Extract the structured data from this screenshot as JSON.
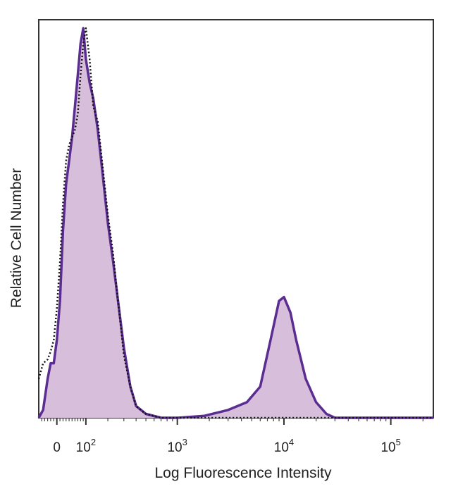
{
  "chart_data": {
    "type": "area",
    "xlabel": "Log Fluorescence Intensity",
    "ylabel": "Relative Cell Number",
    "x_scale": "biexponential",
    "x_ticks": [
      {
        "value": 0,
        "base": "0",
        "exp": ""
      },
      {
        "value": 100,
        "base": "10",
        "exp": "2"
      },
      {
        "value": 1000,
        "base": "10",
        "exp": "3"
      },
      {
        "value": 10000,
        "base": "10",
        "exp": "4"
      },
      {
        "value": 100000,
        "base": "10",
        "exp": "5"
      }
    ],
    "xlim": [
      -60,
      250000
    ],
    "ylim": [
      0,
      100
    ],
    "grid": false,
    "series": [
      {
        "style": "filled-solid",
        "fill_color": "#d7bfdc",
        "line_color": "#5b2d91",
        "points": [
          [
            -60,
            0
          ],
          [
            -45,
            2
          ],
          [
            -30,
            10
          ],
          [
            -20,
            14
          ],
          [
            -10,
            14
          ],
          [
            0,
            20
          ],
          [
            10,
            30
          ],
          [
            20,
            48
          ],
          [
            30,
            60
          ],
          [
            40,
            66
          ],
          [
            50,
            72
          ],
          [
            60,
            80
          ],
          [
            70,
            88
          ],
          [
            80,
            96
          ],
          [
            90,
            100
          ],
          [
            100,
            92
          ],
          [
            115,
            86
          ],
          [
            130,
            82
          ],
          [
            150,
            74
          ],
          [
            170,
            64
          ],
          [
            200,
            50
          ],
          [
            230,
            40
          ],
          [
            260,
            30
          ],
          [
            300,
            18
          ],
          [
            350,
            8
          ],
          [
            400,
            3
          ],
          [
            500,
            1
          ],
          [
            700,
            0
          ],
          [
            1000,
            0
          ],
          [
            1800,
            0.5
          ],
          [
            3000,
            2
          ],
          [
            4500,
            4
          ],
          [
            6000,
            8
          ],
          [
            7500,
            20
          ],
          [
            9000,
            30
          ],
          [
            10000,
            31
          ],
          [
            11500,
            27
          ],
          [
            13000,
            20
          ],
          [
            16000,
            10
          ],
          [
            20000,
            4
          ],
          [
            25000,
            1
          ],
          [
            30000,
            0
          ],
          [
            250000,
            0
          ]
        ]
      },
      {
        "style": "dotted",
        "line_color": "#111111",
        "points": [
          [
            -60,
            10
          ],
          [
            -45,
            14
          ],
          [
            -30,
            15
          ],
          [
            -20,
            17
          ],
          [
            -10,
            20
          ],
          [
            0,
            28
          ],
          [
            10,
            40
          ],
          [
            20,
            55
          ],
          [
            30,
            66
          ],
          [
            40,
            70
          ],
          [
            50,
            72
          ],
          [
            60,
            74
          ],
          [
            70,
            78
          ],
          [
            80,
            88
          ],
          [
            90,
            96
          ],
          [
            100,
            100
          ],
          [
            115,
            92
          ],
          [
            130,
            80
          ],
          [
            150,
            76
          ],
          [
            170,
            66
          ],
          [
            200,
            52
          ],
          [
            230,
            42
          ],
          [
            260,
            30
          ],
          [
            300,
            16
          ],
          [
            350,
            8
          ],
          [
            400,
            3
          ],
          [
            500,
            1
          ],
          [
            700,
            0
          ],
          [
            250000,
            0
          ]
        ]
      }
    ]
  }
}
